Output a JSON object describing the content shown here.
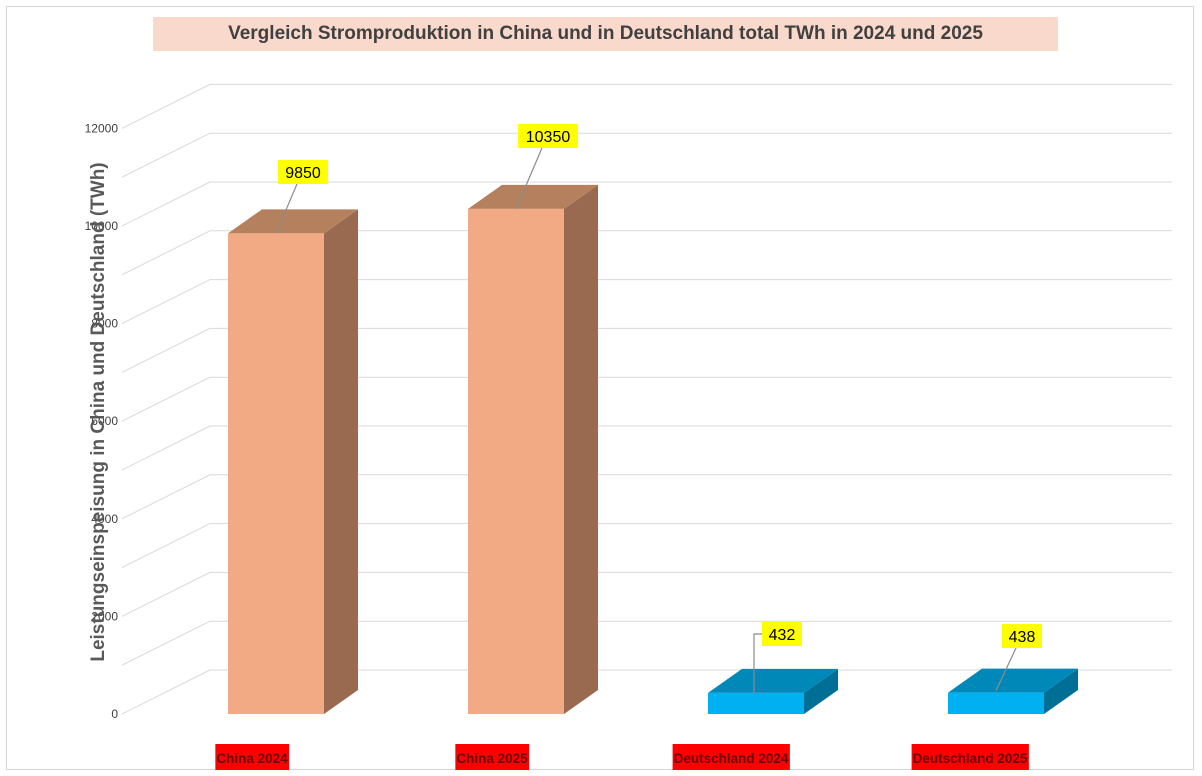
{
  "chart_data": {
    "type": "bar",
    "title": "Vergleich Stromproduktion in China und in Deutschland total TWh in 2024 und 2025",
    "xlabel": "",
    "ylabel": "Leistungseinspeisung in China und Deutschland (TWh)",
    "ylim": [
      0,
      12000
    ],
    "yticks": [
      0,
      2000,
      4000,
      6000,
      8000,
      10000,
      12000
    ],
    "grid": true,
    "categories": [
      "China 2024",
      "China 2025",
      "Deutschland 2024",
      "Deutschland 2025"
    ],
    "values": [
      9850,
      10350,
      432,
      438
    ],
    "data_labels": [
      "9850",
      "10350",
      "432",
      "438"
    ],
    "colors": {
      "china_front": "#f2aa84",
      "china_top": "#b5805d",
      "china_side": "#9a6a50",
      "deutschland_front": "#00b0f0",
      "deutschland_top": "#0089b8",
      "deutschland_side": "#006f96",
      "data_label_background": "#ffff00",
      "category_label_background": "#ff0000",
      "title_background": "#f9d9cc"
    }
  }
}
